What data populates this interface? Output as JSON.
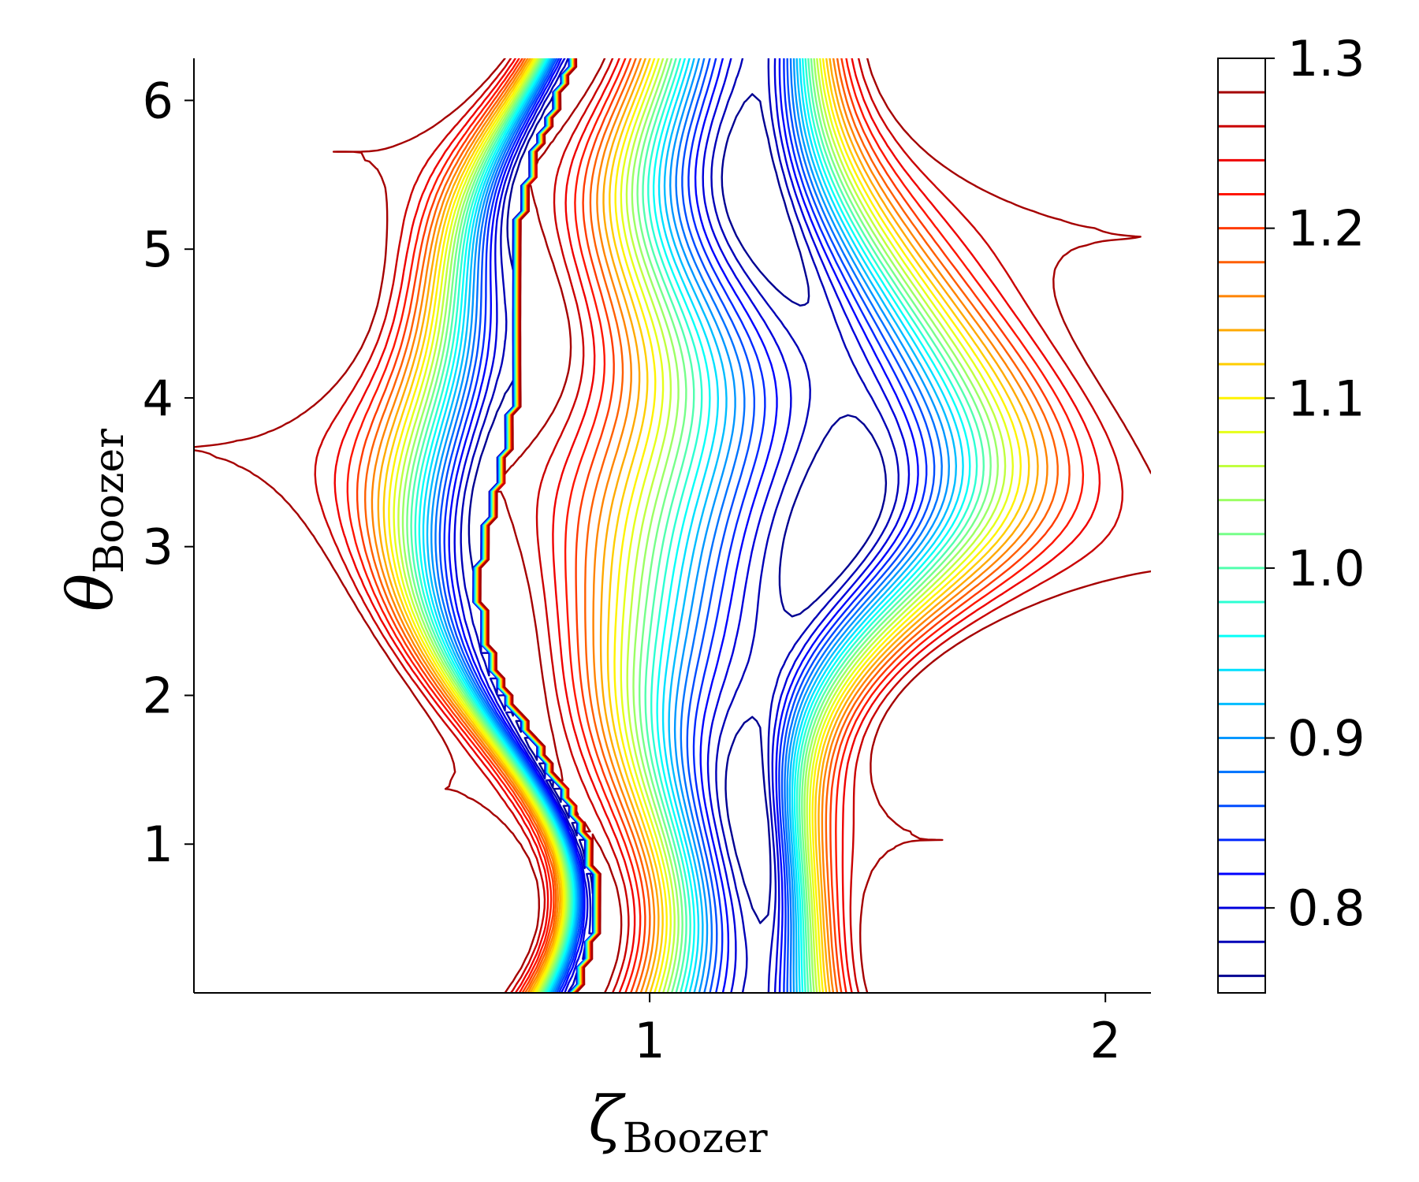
{
  "chart_data": {
    "type": "contour",
    "xlabel": "ζ",
    "xlabel_sub": "Boozer",
    "ylabel": "θ",
    "ylabel_sub": "Boozer",
    "xlim": [
      0.0,
      2.1
    ],
    "ylim": [
      0.0,
      6.283
    ],
    "xticks": [
      1,
      2
    ],
    "xtick_labels": [
      "1",
      "2"
    ],
    "yticks": [
      1,
      2,
      3,
      4,
      5,
      6
    ],
    "ytick_labels": [
      "1",
      "2",
      "3",
      "4",
      "5",
      "6"
    ],
    "colormap": "jet",
    "colorbar": {
      "vmin": 0.75,
      "vmax": 1.3,
      "ticks": [
        0.8,
        0.9,
        1.0,
        1.1,
        1.2,
        1.3
      ],
      "tick_labels": [
        "0.8",
        "0.9",
        "1.0",
        "1.1",
        "1.2",
        "1.3"
      ],
      "levels": [
        0.76,
        0.78,
        0.8,
        0.82,
        0.84,
        0.86,
        0.88,
        0.9,
        0.92,
        0.94,
        0.96,
        0.98,
        1.0,
        1.02,
        1.04,
        1.06,
        1.08,
        1.1,
        1.12,
        1.14,
        1.16,
        1.18,
        1.2,
        1.22,
        1.24,
        1.26,
        1.28
      ]
    },
    "grid": false
  }
}
